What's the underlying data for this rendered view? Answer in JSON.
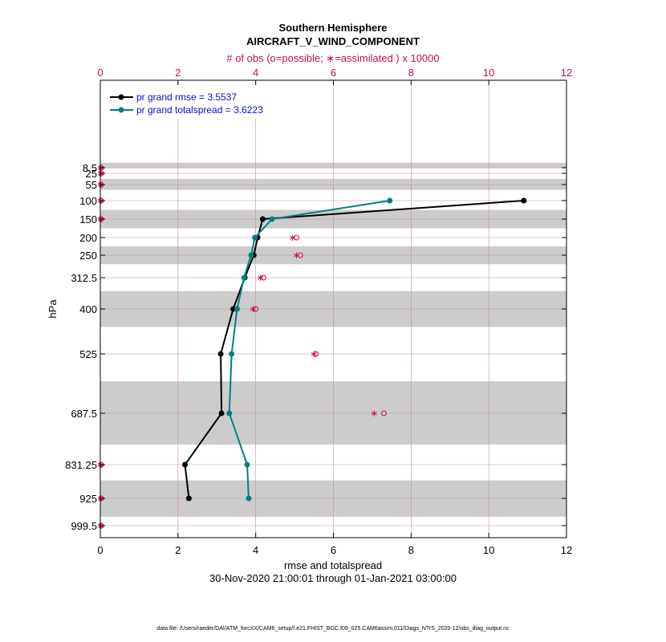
{
  "chart_data": {
    "type": "line",
    "title": "Southern Hemisphere",
    "subtitle": "AIRCRAFT_V_WIND_COMPONENT",
    "top_axis_label": "# of obs (o=possible; ∗=assimilated ) x 10000",
    "xlabel": "rmse and totalspread",
    "ylabel": "hPa",
    "date_range": "30-Nov-2020 21:00:01 through 01-Jan-2021 03:00:00",
    "footer": "data file: /Users/raeder/DAI/ATM_forcXX/CAM6_setup/f.e21.FHIST_BGC.f09_025.CAM6assim.011/Diags_NTrS_2020-12/obs_diag_output.nc",
    "xlim": [
      0,
      12
    ],
    "x_ticks": [
      0,
      2,
      4,
      6,
      8,
      10,
      12
    ],
    "top_xlim": [
      0,
      12
    ],
    "top_x_ticks": [
      0,
      2,
      4,
      6,
      8,
      10,
      12
    ],
    "y_ticks": [
      8.5,
      25,
      55,
      100,
      150,
      200,
      250,
      312.5,
      400,
      525,
      687.5,
      831.25,
      925,
      999.5
    ],
    "y_tick_labels": [
      "8.5",
      "25",
      "55",
      "100",
      "150",
      "200",
      "250",
      "312.5",
      "400",
      "525",
      "687.5",
      "831.25",
      "925",
      "999.5"
    ],
    "grid": true,
    "legend_position": "top-left",
    "series": [
      {
        "name": "pr grand rmse = 3.5537",
        "color": "#000000",
        "levels": [
          100,
          150,
          200,
          250,
          312.5,
          400,
          525,
          687.5,
          831.25,
          925
        ],
        "values": [
          10.9,
          4.18,
          4.05,
          3.95,
          3.72,
          3.42,
          3.1,
          3.12,
          2.18,
          2.28
        ]
      },
      {
        "name": "pr grand totalspread = 3.6223",
        "color": "#008080",
        "levels": [
          100,
          150,
          200,
          250,
          312.5,
          400,
          525,
          687.5,
          831.25,
          925
        ],
        "values": [
          7.45,
          4.42,
          3.98,
          3.88,
          3.7,
          3.52,
          3.38,
          3.32,
          3.78,
          3.82
        ]
      }
    ],
    "obs_counts": {
      "levels": [
        8.5,
        25,
        55,
        100,
        150,
        200,
        250,
        312.5,
        400,
        525,
        687.5,
        831.25,
        925,
        999.5
      ],
      "possible": [
        0.02,
        0.02,
        0.02,
        0.02,
        0.02,
        5.05,
        5.15,
        4.2,
        4.0,
        5.55,
        7.3,
        0.02,
        0.02,
        0.02
      ],
      "assimilated": [
        0.02,
        0.02,
        0.02,
        0.02,
        0.02,
        4.95,
        5.05,
        4.12,
        3.93,
        5.5,
        7.05,
        0.02,
        0.02,
        0.02
      ],
      "color": "#cc0a55"
    },
    "bands": [
      [
        7,
        10
      ],
      [
        40,
        70
      ],
      [
        125,
        175
      ],
      [
        225,
        275
      ],
      [
        350,
        450
      ],
      [
        600,
        775
      ],
      [
        875,
        975
      ]
    ],
    "colors": {
      "band": "#cccccc",
      "grid": "#c98aa6",
      "obs": "#cc0a55",
      "rmse": "#000000",
      "spread": "#008080",
      "legend_text": "#0a0ad6"
    }
  }
}
